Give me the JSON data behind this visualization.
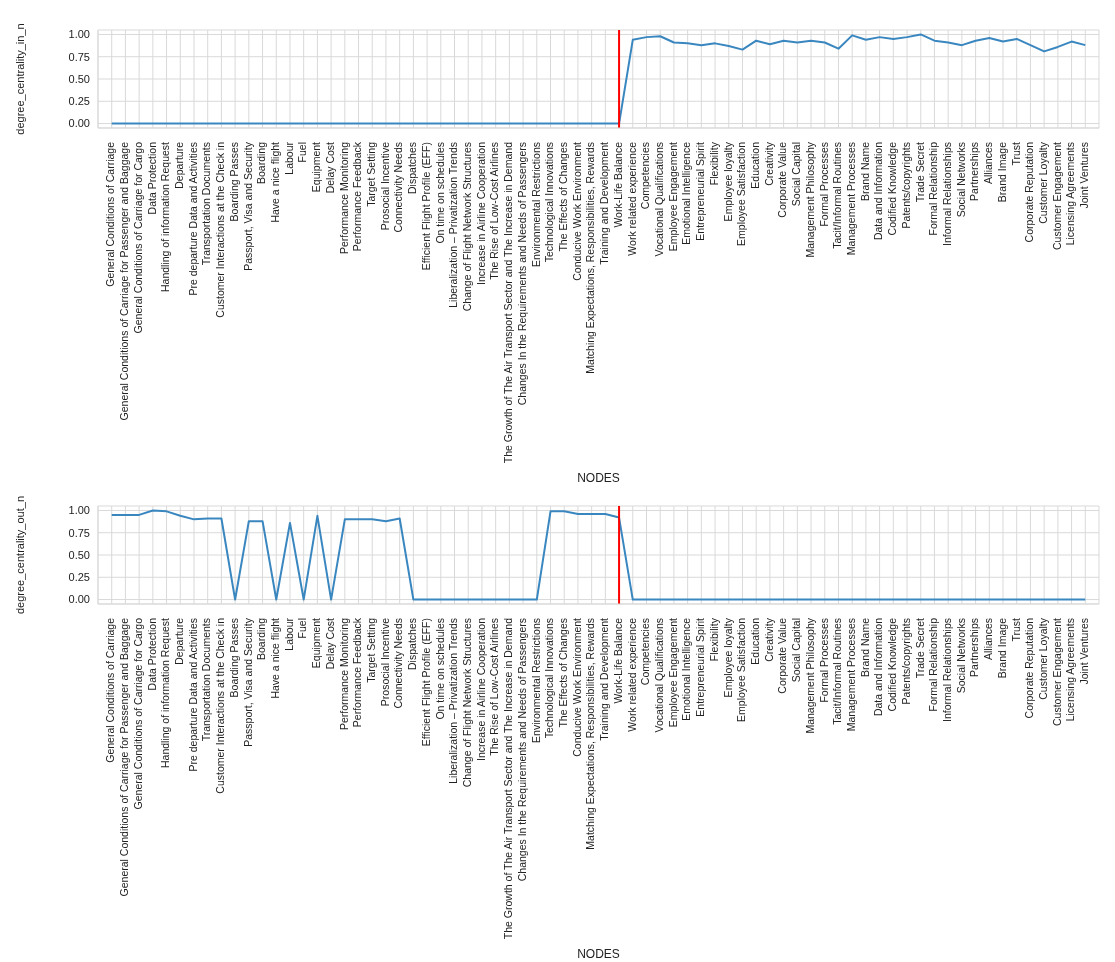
{
  "chart_data": [
    {
      "type": "line",
      "ylabel": "degree_centrality_in_n",
      "xlabel": "NODES",
      "categories": [
        "General Conditions of Carriage",
        "General Conditions of Carriage for Passenger and Baggage",
        "General Conditions of Carriage for Cargo",
        "Data Protection",
        "Handling of information Request",
        "Departure",
        "Pre departure Data and Activities",
        "Transportation Documents",
        "Customer Interactions at the Check in",
        "Boarding Passes",
        "Passport, Visa and Security",
        "Boarding",
        "Have a nice flight",
        "Labour",
        "Fuel",
        "Equipment",
        "Delay Cost",
        "Performance Monitoring",
        "Performance Feedback",
        "Target Setting",
        "Prosocial Incentive",
        "Connectivity Needs",
        "Dispatches",
        "Efficient Flight Profile (EFF)",
        "On time on schedules",
        "Liberalization – Privatization Trends",
        "Change of Flight Network Structures",
        "Increase in Airline Cooperation",
        "The Rise of Low-Cost Airlines",
        "The Growth of The Air Transport Sector and The Increase in Demand",
        "Changes In the Requirements and Needs of Passengers",
        "Environmental Restrictions",
        "Technological Innovations",
        "The Effects of Changes",
        "Conducive Work Environment",
        "Matching Expectations, Responsibilities, Rewards",
        "Training and Development",
        "Work-Life Balance",
        "Work related experience",
        "Competencies",
        "Vocational Qualifications",
        "Employee Engagement",
        "Emotional Intelligence",
        "Entrepreneurial Spirit",
        "Flexibility",
        "Employee loyalty",
        "Employee Satisfaction",
        "Education",
        "Creativity",
        "Corporate Value",
        "Social Capital",
        "Management Philosophy",
        "Formal Processes",
        "Tacit/Informal Routines",
        "Management Processes",
        "Brand Name",
        "Data and Information",
        "Codified Knowledge",
        "Patents/copyrights",
        "Trade Secret",
        "Formal Relationship",
        "Informal Relationships",
        "Social Networks",
        "Partnerships",
        "Alliances",
        "Brand Image",
        "Trust",
        "Corporate Reputation",
        "Customer Loyalty",
        "Customer Engagement",
        "Licensing Agreements",
        "Joint Ventures"
      ],
      "series": [
        {
          "color": "#3a87c0",
          "values": [
            0,
            0,
            0,
            0,
            0,
            0,
            0,
            0,
            0,
            0,
            0,
            0,
            0,
            0,
            0,
            0,
            0,
            0,
            0,
            0,
            0,
            0,
            0,
            0,
            0,
            0,
            0,
            0,
            0,
            0,
            0,
            0,
            0,
            0,
            0,
            0,
            0,
            0,
            0.94,
            0.97,
            0.98,
            0.91,
            0.9,
            0.88,
            0.9,
            0.87,
            0.83,
            0.93,
            0.89,
            0.93,
            0.91,
            0.93,
            0.91,
            0.84,
            0.99,
            0.94,
            0.97,
            0.95,
            0.97,
            1.0,
            0.93,
            0.91,
            0.88,
            0.93,
            0.96,
            0.92,
            0.95,
            0.88,
            0.81,
            0.86,
            0.92,
            0.88
          ]
        }
      ],
      "ylim": [
        -0.05,
        1.05
      ],
      "yticks": [
        {
          "value": 0,
          "label": "0.00"
        },
        {
          "value": 0.25,
          "label": "0.25"
        },
        {
          "value": 0.5,
          "label": "0.50"
        },
        {
          "value": 0.75,
          "label": "0.75"
        },
        {
          "value": 1,
          "label": "1.00"
        }
      ],
      "grid": true,
      "ref_lines": [
        {
          "axis": "x",
          "value": "Work-Life Balance",
          "color": "#ff0000"
        }
      ]
    },
    {
      "type": "line",
      "ylabel": "degree_centrality_out_n",
      "xlabel": "NODES",
      "categories": [
        "General Conditions of Carriage",
        "General Conditions of Carriage for Passenger and Baggage",
        "General Conditions of Carriage for Cargo",
        "Data Protection",
        "Handling of information Request",
        "Departure",
        "Pre departure Data and Activities",
        "Transportation Documents",
        "Customer Interactions at the Check in",
        "Boarding Passes",
        "Passport, Visa and Security",
        "Boarding",
        "Have a nice flight",
        "Labour",
        "Fuel",
        "Equipment",
        "Delay Cost",
        "Performance Monitoring",
        "Performance Feedback",
        "Target Setting",
        "Prosocial Incentive",
        "Connectivity Needs",
        "Dispatches",
        "Efficient Flight Profile (EFF)",
        "On time on schedules",
        "Liberalization – Privatization Trends",
        "Change of Flight Network Structures",
        "Increase in Airline Cooperation",
        "The Rise of Low-Cost Airlines",
        "The Growth of The Air Transport Sector and The Increase in Demand",
        "Changes In the Requirements and Needs of Passengers",
        "Environmental Restrictions",
        "Technological Innovations",
        "The Effects of Changes",
        "Conducive Work Environment",
        "Matching Expectations, Responsibilities, Rewards",
        "Training and Development",
        "Work-Life Balance",
        "Work related experience",
        "Competencies",
        "Vocational Qualifications",
        "Employee Engagement",
        "Emotional Intelligence",
        "Entrepreneurial Spirit",
        "Flexibility",
        "Employee loyalty",
        "Employee Satisfaction",
        "Education",
        "Creativity",
        "Corporate Value",
        "Social Capital",
        "Management Philosophy",
        "Formal Processes",
        "Tacit/Informal Routines",
        "Management Processes",
        "Brand Name",
        "Data and Information",
        "Codified Knowledge",
        "Patents/copyrights",
        "Trade Secret",
        "Formal Relationship",
        "Informal Relationships",
        "Social Networks",
        "Partnerships",
        "Alliances",
        "Brand Image",
        "Trust",
        "Corporate Reputation",
        "Customer Loyalty",
        "Customer Engagement",
        "Licensing Agreements",
        "Joint Ventures"
      ],
      "series": [
        {
          "color": "#3a87c0",
          "values": [
            0.95,
            0.95,
            0.95,
            1.0,
            0.99,
            0.94,
            0.9,
            0.91,
            0.91,
            0,
            0.88,
            0.88,
            0,
            0.86,
            0,
            0.94,
            0,
            0.9,
            0.9,
            0.9,
            0.88,
            0.91,
            0,
            0,
            0,
            0,
            0,
            0,
            0,
            0,
            0,
            0,
            0.99,
            0.99,
            0.96,
            0.96,
            0.96,
            0.92,
            0,
            0,
            0,
            0,
            0,
            0,
            0,
            0,
            0,
            0,
            0,
            0,
            0,
            0,
            0,
            0,
            0,
            0,
            0,
            0,
            0,
            0,
            0,
            0,
            0,
            0,
            0,
            0,
            0,
            0,
            0,
            0,
            0,
            0
          ]
        }
      ],
      "ylim": [
        -0.05,
        1.05
      ],
      "yticks": [
        {
          "value": 0,
          "label": "0.00"
        },
        {
          "value": 0.25,
          "label": "0.25"
        },
        {
          "value": 0.5,
          "label": "0.50"
        },
        {
          "value": 0.75,
          "label": "0.75"
        },
        {
          "value": 1,
          "label": "1.00"
        }
      ],
      "grid": true,
      "ref_lines": [
        {
          "axis": "x",
          "value": "Work-Life Balance",
          "color": "#ff0000"
        }
      ]
    }
  ]
}
